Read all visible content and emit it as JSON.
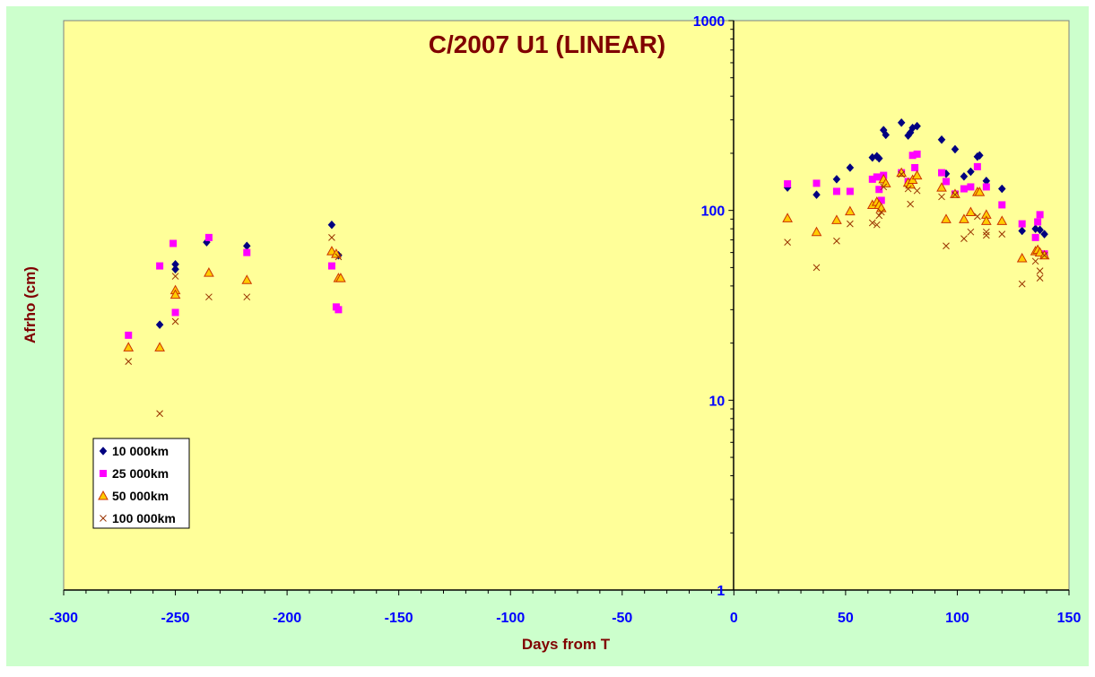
{
  "colors": {
    "chart_area": "#CCFFCC",
    "plot_area": "#FFFF99",
    "title": "#800000",
    "axis_title": "#800000",
    "tick_label": "#0000FF",
    "s1": "#000080",
    "s2": "#FF00FF",
    "s3_fill": "#FFCC00",
    "s3_stroke": "#CC3300",
    "s4": "#993300"
  },
  "chart_data": {
    "type": "scatter",
    "title": "C/2007 U1 (LINEAR)",
    "xlabel": "Days from T",
    "ylabel": "Afrho (cm)",
    "xlim": [
      -300,
      150
    ],
    "ylim": [
      1,
      1000
    ],
    "y_scale": "log",
    "x_ticks": [
      -300,
      -250,
      -200,
      -150,
      -100,
      -50,
      0,
      50,
      100,
      150
    ],
    "y_ticks": [
      1,
      10,
      100,
      1000
    ],
    "grid": false,
    "legend_position": "bottom-left",
    "series": [
      {
        "name": "10 000km",
        "marker": "diamond",
        "points": [
          [
            -257,
            25
          ],
          [
            -250,
            52
          ],
          [
            -250,
            49
          ],
          [
            -236,
            68
          ],
          [
            -218,
            65
          ],
          [
            -180,
            84
          ],
          [
            -177,
            58
          ],
          [
            24,
            132
          ],
          [
            37,
            121
          ],
          [
            46,
            146
          ],
          [
            52,
            168
          ],
          [
            62,
            190
          ],
          [
            64,
            193
          ],
          [
            65,
            188
          ],
          [
            67,
            265
          ],
          [
            68,
            250
          ],
          [
            75,
            290
          ],
          [
            78,
            248
          ],
          [
            79,
            257
          ],
          [
            80,
            272
          ],
          [
            82,
            278
          ],
          [
            93,
            236
          ],
          [
            95,
            156
          ],
          [
            99,
            210
          ],
          [
            103,
            151
          ],
          [
            106,
            160
          ],
          [
            109,
            192
          ],
          [
            110,
            195
          ],
          [
            113,
            143
          ],
          [
            120,
            130
          ],
          [
            129,
            78
          ],
          [
            135,
            80
          ],
          [
            137,
            79
          ],
          [
            139,
            75
          ]
        ]
      },
      {
        "name": "25 000km",
        "marker": "square",
        "points": [
          [
            -271,
            22
          ],
          [
            -257,
            51
          ],
          [
            -251,
            67
          ],
          [
            -250,
            29
          ],
          [
            -235,
            72
          ],
          [
            -218,
            60
          ],
          [
            -180,
            51
          ],
          [
            -178,
            31
          ],
          [
            -177,
            30
          ],
          [
            24,
            138
          ],
          [
            37,
            139
          ],
          [
            46,
            126
          ],
          [
            52,
            126
          ],
          [
            62,
            146
          ],
          [
            64,
            150
          ],
          [
            65,
            129
          ],
          [
            66,
            113
          ],
          [
            67,
            153
          ],
          [
            75,
            158
          ],
          [
            78,
            142
          ],
          [
            80,
            195
          ],
          [
            81,
            168
          ],
          [
            82,
            198
          ],
          [
            93,
            158
          ],
          [
            95,
            142
          ],
          [
            99,
            122
          ],
          [
            103,
            130
          ],
          [
            106,
            133
          ],
          [
            109,
            170
          ],
          [
            113,
            133
          ],
          [
            120,
            107
          ],
          [
            129,
            85
          ],
          [
            135,
            72
          ],
          [
            136,
            87
          ],
          [
            137,
            95
          ],
          [
            139,
            59
          ]
        ]
      },
      {
        "name": "50 000km",
        "marker": "triangle",
        "points": [
          [
            -271,
            19
          ],
          [
            -257,
            19
          ],
          [
            -250,
            38
          ],
          [
            -250,
            36
          ],
          [
            -235,
            47
          ],
          [
            -218,
            43
          ],
          [
            -180,
            61
          ],
          [
            -178,
            59
          ],
          [
            -177,
            44
          ],
          [
            -176,
            44
          ],
          [
            24,
            91
          ],
          [
            37,
            77
          ],
          [
            46,
            89
          ],
          [
            52,
            99
          ],
          [
            62,
            107
          ],
          [
            64,
            111
          ],
          [
            65,
            107
          ],
          [
            66,
            103
          ],
          [
            67,
            146
          ],
          [
            68,
            139
          ],
          [
            75,
            158
          ],
          [
            78,
            140
          ],
          [
            79,
            137
          ],
          [
            80,
            145
          ],
          [
            82,
            153
          ],
          [
            93,
            132
          ],
          [
            95,
            90
          ],
          [
            99,
            122
          ],
          [
            103,
            90
          ],
          [
            106,
            98
          ],
          [
            109,
            125
          ],
          [
            110,
            125
          ],
          [
            113,
            95
          ],
          [
            113,
            88
          ],
          [
            120,
            88
          ],
          [
            129,
            56
          ],
          [
            135,
            61
          ],
          [
            136,
            62
          ],
          [
            137,
            60
          ],
          [
            139,
            58
          ]
        ]
      },
      {
        "name": "100 000km",
        "marker": "x",
        "points": [
          [
            -271,
            16
          ],
          [
            -257,
            8.5
          ],
          [
            -250,
            26
          ],
          [
            -250,
            45
          ],
          [
            -235,
            35
          ],
          [
            -218,
            35
          ],
          [
            -180,
            72
          ],
          [
            -177,
            57
          ],
          [
            24,
            68
          ],
          [
            37,
            50
          ],
          [
            46,
            69
          ],
          [
            52,
            85
          ],
          [
            62,
            86
          ],
          [
            64,
            84
          ],
          [
            65,
            94
          ],
          [
            66,
            98
          ],
          [
            67,
            133
          ],
          [
            75,
            155
          ],
          [
            78,
            130
          ],
          [
            79,
            108
          ],
          [
            82,
            127
          ],
          [
            93,
            118
          ],
          [
            95,
            65
          ],
          [
            99,
            121
          ],
          [
            103,
            71
          ],
          [
            106,
            77
          ],
          [
            109,
            93
          ],
          [
            113,
            74
          ],
          [
            113,
            77
          ],
          [
            120,
            75
          ],
          [
            129,
            41
          ],
          [
            135,
            54
          ],
          [
            137,
            48
          ],
          [
            137,
            44
          ],
          [
            139,
            58
          ]
        ]
      }
    ]
  }
}
